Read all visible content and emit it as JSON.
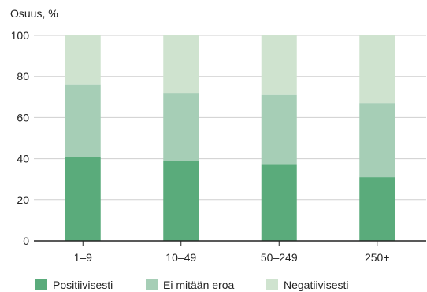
{
  "chart_data": {
    "type": "bar",
    "stacked": true,
    "ylabel": "Osuus, %",
    "ylim": [
      0,
      100
    ],
    "yticks": [
      0,
      20,
      40,
      60,
      80,
      100
    ],
    "grid": true,
    "legend_position": "bottom",
    "categories": [
      "1–9",
      "10–49",
      "50–249",
      "250+"
    ],
    "series": [
      {
        "name": "Positiivisesti",
        "color": "#5aab7b",
        "values": [
          41,
          39,
          37,
          31
        ]
      },
      {
        "name": "Ei mitään eroa",
        "color": "#a6ceb6",
        "values": [
          35,
          33,
          34,
          36
        ]
      },
      {
        "name": "Negatiivisesti",
        "color": "#cfe3cf",
        "values": [
          24,
          28,
          29,
          33
        ]
      }
    ]
  }
}
